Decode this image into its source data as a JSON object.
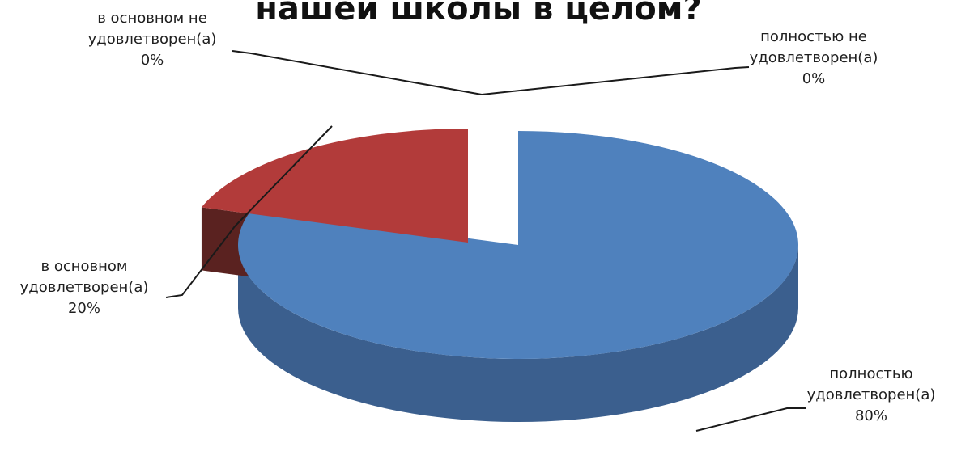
{
  "chart_data": {
    "type": "pie",
    "title": "нашей школы в целом?",
    "slices": [
      {
        "label_lines": [
          "полностью",
          "удовлетворен(а)"
        ],
        "percent_label": "80%",
        "value": 80,
        "color": "#4f81bd",
        "side_color": "#3b5f8e"
      },
      {
        "label_lines": [
          "в основном",
          "удовлетворен(а)"
        ],
        "percent_label": "20%",
        "value": 20,
        "color": "#b23b3a",
        "side_color": "#5a2220"
      },
      {
        "label_lines": [
          "в основном не",
          "удовлетворен(а)"
        ],
        "percent_label": "0%",
        "value": 0,
        "color": "#9bbb59",
        "side_color": "#6f8a3c"
      },
      {
        "label_lines": [
          "полностью не",
          "удовлетворен(а)"
        ],
        "percent_label": "0%",
        "value": 0,
        "color": "#8064a2",
        "side_color": "#5a4673"
      }
    ]
  }
}
